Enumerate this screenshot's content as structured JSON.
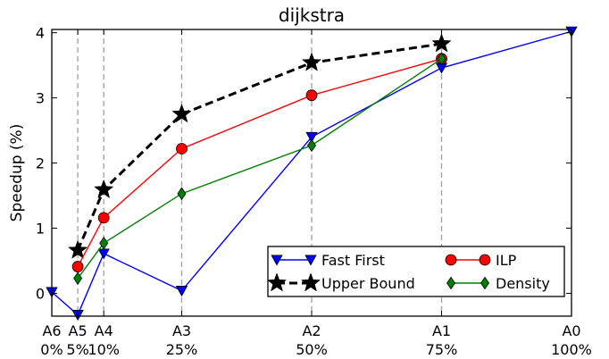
{
  "chart_data": {
    "type": "line",
    "title": "dijkstra",
    "xlabel": "",
    "ylabel": "Speedup (%)",
    "x": [
      0,
      5,
      10,
      25,
      50,
      75,
      100
    ],
    "xtick_labels": [
      "A6\n0%",
      "A5\n5%",
      "A4\n10%",
      "A3\n25%",
      "A2\n50%",
      "A1\n75%",
      "A0\n100%"
    ],
    "xlim": [
      0,
      100
    ],
    "ylim": [
      -0.35,
      4.05
    ],
    "yticks": [
      0,
      1,
      2,
      3,
      4
    ],
    "grid": "vertical dashed at x ticks",
    "legend_position": "bottom-right",
    "series": [
      {
        "name": "Fast First",
        "color": "#0000ff",
        "marker": "triangle-down",
        "dashed": false,
        "x": [
          0,
          5,
          10,
          25,
          50,
          75,
          100
        ],
        "y": [
          0.02,
          -0.33,
          0.61,
          0.04,
          2.4,
          3.46,
          4.02
        ]
      },
      {
        "name": "Upper Bound",
        "color": "#000000",
        "marker": "star",
        "dashed": true,
        "x": [
          5,
          10,
          25,
          50,
          75
        ],
        "y": [
          0.66,
          1.59,
          2.75,
          3.54,
          3.83
        ]
      },
      {
        "name": "ILP",
        "color": "#ff0000",
        "marker": "circle",
        "dashed": false,
        "x": [
          5,
          10,
          25,
          50,
          75
        ],
        "y": [
          0.41,
          1.16,
          2.22,
          3.04,
          3.6
        ]
      },
      {
        "name": "Density",
        "color": "#008000",
        "marker": "diamond",
        "dashed": false,
        "x": [
          5,
          10,
          25,
          50,
          75
        ],
        "y": [
          0.23,
          0.77,
          1.53,
          2.27,
          3.6
        ]
      }
    ],
    "legend_order": [
      "Fast First",
      "ILP",
      "Upper Bound",
      "Density"
    ]
  }
}
